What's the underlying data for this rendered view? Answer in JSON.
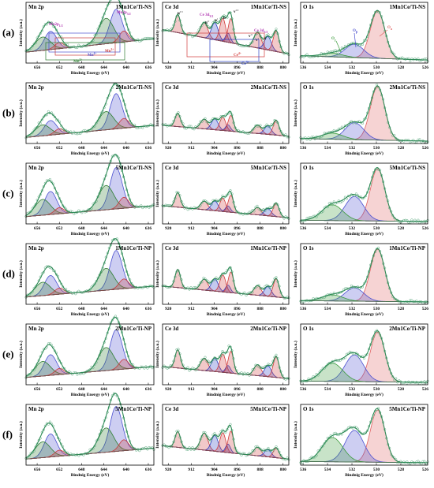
{
  "row_labels": [
    "(a)",
    "(b)",
    "(c)",
    "(d)",
    "(e)",
    "(f)"
  ],
  "samples": [
    "1Mn1Ce/Ti-NS",
    "2Mn1Ce/Ti-NS",
    "5Mn1Ce/Ti-NS",
    "1Mn1Ce/Ti-NP",
    "2Mn1Ce/Ti-NP",
    "5Mn1Ce/Ti-NP"
  ],
  "colors": {
    "envelope": "#2e8b57",
    "data_points": "#5aa87e",
    "mn_4plus": "#4b50d0",
    "mn_3plus": "#c83c3c",
    "mn_2plus": "#2e7d32",
    "ce_3plus": "#2c3fc4",
    "ce_4plus": "#d23c3c",
    "o_alpha": "#e06060",
    "o_beta": "#4a4fcf",
    "o_gamma": "#3a9a3a"
  },
  "chart_data": [
    {
      "type": "line",
      "region": "Mn 2p",
      "title": "Mn 2p",
      "xlabel": "Bindnig Energy (eV)",
      "ylabel": "Intensity (a.u.)",
      "xlim": [
        658,
        635
      ],
      "x_reversed": true,
      "xticks": [
        656,
        652,
        648,
        644,
        640,
        636
      ],
      "annotations": [
        "Mn2p",
        "1/2",
        "Mn2p",
        "3/2",
        "Mn",
        "4+",
        "Mn",
        "3+",
        "Mn",
        "2+"
      ],
      "components": [
        {
          "name": "Mn4+ 2p3/2",
          "center": 641.8,
          "fwhm": 2.6,
          "color_key": "mn_4plus"
        },
        {
          "name": "Mn3+ 2p3/2",
          "center": 643.6,
          "fwhm": 3.2,
          "color_key": "mn_2plus"
        },
        {
          "name": "Mn2+ 2p3/2",
          "center": 640.4,
          "fwhm": 2.0,
          "color_key": "mn_3plus"
        },
        {
          "name": "Mn4+ 2p1/2",
          "center": 653.6,
          "fwhm": 2.6,
          "color_key": "mn_4plus"
        },
        {
          "name": "Mn3+ 2p1/2",
          "center": 655.0,
          "fwhm": 3.2,
          "color_key": "mn_2plus"
        },
        {
          "name": "Mn2+ 2p1/2",
          "center": 652.0,
          "fwhm": 2.0,
          "color_key": "mn_3plus"
        }
      ],
      "rows": [
        {
          "sample": "1Mn1Ce/Ti-NS",
          "baseline": [
            0.18,
            0.4
          ],
          "heights": [
            0.55,
            0.42,
            0.18,
            0.3,
            0.22,
            0.1
          ]
        },
        {
          "sample": "2Mn1Ce/Ti-NS",
          "baseline": [
            0.1,
            0.3
          ],
          "heights": [
            0.58,
            0.3,
            0.16,
            0.24,
            0.18,
            0.09
          ]
        },
        {
          "sample": "5Mn1Ce/Ti-NS",
          "baseline": [
            0.12,
            0.3
          ],
          "heights": [
            0.68,
            0.4,
            0.18,
            0.38,
            0.26,
            0.1
          ]
        },
        {
          "sample": "1Mn1Ce/Ti-NP",
          "baseline": [
            0.12,
            0.3
          ],
          "heights": [
            0.64,
            0.36,
            0.16,
            0.32,
            0.22,
            0.1
          ]
        },
        {
          "sample": "2Mn1Ce/Ti-NP",
          "baseline": [
            0.12,
            0.3
          ],
          "heights": [
            0.66,
            0.38,
            0.16,
            0.34,
            0.24,
            0.1
          ]
        },
        {
          "sample": "5Mn1Ce/Ti-NP",
          "baseline": [
            0.1,
            0.28
          ],
          "heights": [
            0.74,
            0.4,
            0.18,
            0.38,
            0.26,
            0.1
          ]
        }
      ]
    },
    {
      "type": "line",
      "region": "Ce 3d",
      "title": "Ce 3d",
      "xlabel": "Bindnig Energy (eV)",
      "ylabel": "Intensity (a.u.)",
      "xlim": [
        922,
        878
      ],
      "x_reversed": true,
      "xticks": [
        920,
        912,
        904,
        896,
        888,
        880
      ],
      "annotations": [
        "u'''",
        "u''",
        "u'",
        "u",
        "Ce 3d",
        "3/2",
        "Ce 3d",
        "5/2",
        "v'''",
        "v''",
        "v'",
        "v",
        "Ce",
        "4+",
        "Ce",
        "3+"
      ],
      "components": [
        {
          "name": "u'''",
          "center": 916.7,
          "fwhm": 2.2,
          "color_key": "ce_4plus"
        },
        {
          "name": "u''",
          "center": 907.5,
          "fwhm": 3.0,
          "color_key": "ce_4plus"
        },
        {
          "name": "u'",
          "center": 903.8,
          "fwhm": 2.8,
          "color_key": "ce_3plus"
        },
        {
          "name": "u",
          "center": 901.0,
          "fwhm": 2.4,
          "color_key": "ce_4plus"
        },
        {
          "name": "u0",
          "center": 899.2,
          "fwhm": 2.0,
          "color_key": "ce_3plus"
        },
        {
          "name": "v'''",
          "center": 898.2,
          "fwhm": 2.2,
          "color_key": "ce_4plus"
        },
        {
          "name": "v''",
          "center": 888.9,
          "fwhm": 3.0,
          "color_key": "ce_4plus"
        },
        {
          "name": "v'",
          "center": 885.3,
          "fwhm": 2.8,
          "color_key": "ce_3plus"
        },
        {
          "name": "v",
          "center": 882.4,
          "fwhm": 2.4,
          "color_key": "ce_4plus"
        }
      ],
      "rows": [
        {
          "sample": "1Mn1Ce/Ti-NS",
          "baseline": [
            0.55,
            0.15
          ],
          "heights": [
            0.3,
            0.25,
            0.28,
            0.38,
            0.15,
            0.4,
            0.26,
            0.22,
            0.34
          ]
        },
        {
          "sample": "2Mn1Ce/Ti-NS",
          "baseline": [
            0.3,
            0.12
          ],
          "heights": [
            0.22,
            0.16,
            0.18,
            0.22,
            0.1,
            0.26,
            0.14,
            0.14,
            0.24
          ]
        },
        {
          "sample": "5Mn1Ce/Ti-NS",
          "baseline": [
            0.3,
            0.1
          ],
          "heights": [
            0.24,
            0.14,
            0.16,
            0.22,
            0.1,
            0.28,
            0.12,
            0.12,
            0.22
          ]
        },
        {
          "sample": "1Mn1Ce/Ti-NP",
          "baseline": [
            0.3,
            0.1
          ],
          "heights": [
            0.3,
            0.18,
            0.2,
            0.28,
            0.12,
            0.34,
            0.16,
            0.16,
            0.3
          ]
        },
        {
          "sample": "2Mn1Ce/Ti-NP",
          "baseline": [
            0.3,
            0.1
          ],
          "heights": [
            0.3,
            0.2,
            0.22,
            0.3,
            0.12,
            0.36,
            0.18,
            0.18,
            0.34
          ]
        },
        {
          "sample": "5Mn1Ce/Ti-NP",
          "baseline": [
            0.32,
            0.1
          ],
          "heights": [
            0.26,
            0.28,
            0.26,
            0.32,
            0.14,
            0.36,
            0.14,
            0.12,
            0.16
          ]
        }
      ]
    },
    {
      "type": "line",
      "region": "O 1s",
      "title": "O 1s",
      "xlabel": "Bindnig Energy (eV)",
      "ylabel": "Intensity (a.u.)",
      "xlim": [
        536.2,
        525.8
      ],
      "x_reversed": true,
      "xticks": [
        536,
        534,
        532,
        530,
        528,
        526
      ],
      "annotations": [
        "O",
        "γ",
        "O",
        "β",
        "O",
        "α"
      ],
      "components": [
        {
          "name": "Oα",
          "center": 529.9,
          "fwhm": 1.4,
          "color_key": "o_alpha"
        },
        {
          "name": "Oβ",
          "center": 531.8,
          "fwhm": 1.8,
          "color_key": "o_beta"
        },
        {
          "name": "Oγ",
          "center": 533.6,
          "fwhm": 2.0,
          "color_key": "o_gamma"
        }
      ],
      "rows": [
        {
          "sample": "1Mn1Ce/Ti-NS",
          "baseline": [
            0.12,
            0.05
          ],
          "heights": [
            0.78,
            0.22,
            0.06
          ]
        },
        {
          "sample": "2Mn1Ce/Ti-NS",
          "baseline": [
            0.08,
            0.04
          ],
          "heights": [
            0.88,
            0.28,
            0.1
          ]
        },
        {
          "sample": "5Mn1Ce/Ti-NS",
          "baseline": [
            0.06,
            0.04
          ],
          "heights": [
            0.86,
            0.4,
            0.26
          ]
        },
        {
          "sample": "1Mn1Ce/Ti-NP",
          "baseline": [
            0.06,
            0.04
          ],
          "heights": [
            0.86,
            0.22,
            0.1
          ]
        },
        {
          "sample": "2Mn1Ce/Ti-NP",
          "baseline": [
            0.06,
            0.04
          ],
          "heights": [
            0.82,
            0.44,
            0.3
          ]
        },
        {
          "sample": "5Mn1Ce/Ti-NP",
          "baseline": [
            0.06,
            0.04
          ],
          "heights": [
            0.86,
            0.52,
            0.4
          ]
        }
      ]
    }
  ]
}
